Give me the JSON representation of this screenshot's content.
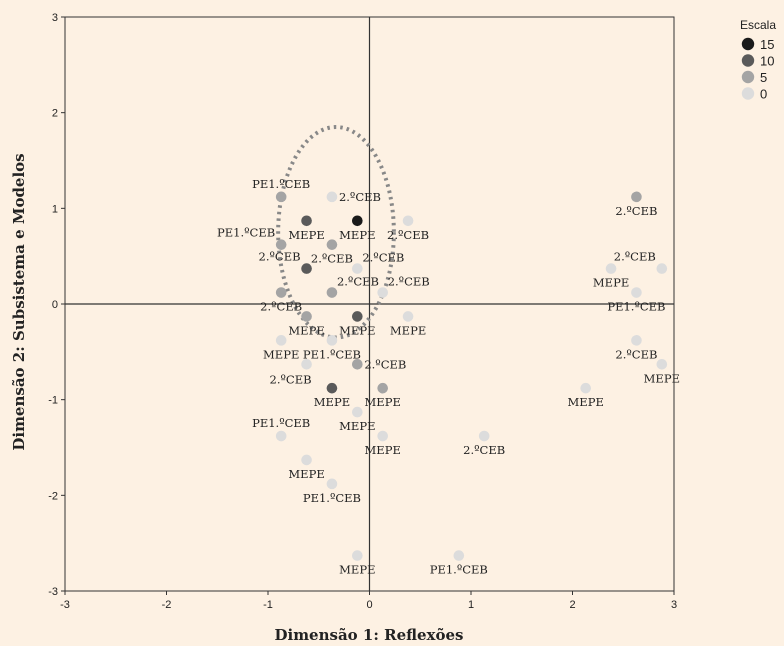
{
  "chart_data": {
    "type": "scatter",
    "xlabel": "Dimensão 1: Reflexões",
    "ylabel": "Dimensão 2: Subsistema e Modelos",
    "xlim": [
      -3,
      3
    ],
    "ylim": [
      -3,
      3
    ],
    "xticks": [
      "-3",
      "-2",
      "-1",
      "0",
      "1",
      "2",
      "3"
    ],
    "yticks": [
      "3",
      "2",
      "1",
      "0",
      "-1",
      "-2",
      "-3"
    ],
    "legend": {
      "title": "Escala",
      "placement": "top-right, outside plot",
      "entries": [
        {
          "label": "15",
          "color": "#1a1a1a"
        },
        {
          "label": "10",
          "color": "#5a5a5a"
        },
        {
          "label": "5",
          "color": "#a4a4a4"
        },
        {
          "label": "0",
          "color": "#dcdcdc"
        }
      ]
    },
    "colors": {
      "15": "#1a1a1a",
      "10": "#5a5a5a",
      "5": "#a4a4a4",
      "0": "#dcdcdc"
    },
    "points": [
      {
        "x": -0.87,
        "y": 1.12,
        "scale": "5",
        "label": "PE1.ºCEB",
        "pos": "above"
      },
      {
        "x": -0.37,
        "y": 1.12,
        "scale": "0",
        "label": "2.ºCEB",
        "pos": "right"
      },
      {
        "x": -0.62,
        "y": 0.87,
        "scale": "10",
        "label": "MEPE",
        "pos": "below"
      },
      {
        "x": -0.12,
        "y": 0.87,
        "scale": "15",
        "label": "MEPE",
        "pos": "below"
      },
      {
        "x": 0.38,
        "y": 0.87,
        "scale": "0",
        "label": "2.ºCEB",
        "pos": "below"
      },
      {
        "x": -0.87,
        "y": 0.62,
        "scale": "5",
        "label": "PE1.ºCEB",
        "pos": "upleft"
      },
      {
        "x": -0.37,
        "y": 0.62,
        "scale": "5",
        "label": "2.ºCEB",
        "pos": "below"
      },
      {
        "x": -0.62,
        "y": 0.37,
        "scale": "10",
        "label": "2.ºCEB",
        "pos": "upleft"
      },
      {
        "x": -0.12,
        "y": 0.37,
        "scale": "0",
        "label": "2.ºCEB",
        "pos": "upright"
      },
      {
        "x": -0.37,
        "y": 0.12,
        "scale": "5",
        "label": "2.ºCEB",
        "pos": "upright"
      },
      {
        "x": 0.13,
        "y": 0.12,
        "scale": "0",
        "label": "2.ºCEB",
        "pos": "upright"
      },
      {
        "x": -0.87,
        "y": 0.12,
        "scale": "5",
        "label": "2.ºCEB",
        "pos": "below"
      },
      {
        "x": -0.62,
        "y": -0.13,
        "scale": "5",
        "label": "MEPE",
        "pos": "below"
      },
      {
        "x": -0.12,
        "y": -0.13,
        "scale": "10",
        "label": "MEPE",
        "pos": "below"
      },
      {
        "x": 0.38,
        "y": -0.13,
        "scale": "0",
        "label": "MEPE",
        "pos": "below"
      },
      {
        "x": -0.87,
        "y": -0.38,
        "scale": "0",
        "label": "MEPE",
        "pos": "below"
      },
      {
        "x": -0.37,
        "y": -0.38,
        "scale": "0",
        "label": "PE1.ºCEB",
        "pos": "below"
      },
      {
        "x": -0.62,
        "y": -0.63,
        "scale": "0",
        "label": "2.ºCEB",
        "pos": "belowleft"
      },
      {
        "x": -0.12,
        "y": -0.63,
        "scale": "5",
        "label": "2.ºCEB",
        "pos": "right"
      },
      {
        "x": -0.37,
        "y": -0.88,
        "scale": "10",
        "label": "MEPE",
        "pos": "below"
      },
      {
        "x": 0.13,
        "y": -0.88,
        "scale": "5",
        "label": "MEPE",
        "pos": "below"
      },
      {
        "x": -0.12,
        "y": -1.13,
        "scale": "0",
        "label": "MEPE",
        "pos": "below"
      },
      {
        "x": 0.13,
        "y": -1.38,
        "scale": "0",
        "label": "MEPE",
        "pos": "below"
      },
      {
        "x": -0.87,
        "y": -1.38,
        "scale": "0",
        "label": "PE1.ºCEB",
        "pos": "above"
      },
      {
        "x": -0.62,
        "y": -1.63,
        "scale": "0",
        "label": "MEPE",
        "pos": "below"
      },
      {
        "x": -0.37,
        "y": -1.88,
        "scale": "0",
        "label": "PE1.ºCEB",
        "pos": "below"
      },
      {
        "x": -0.12,
        "y": -2.63,
        "scale": "0",
        "label": "MEPE",
        "pos": "below"
      },
      {
        "x": 0.88,
        "y": -2.63,
        "scale": "0",
        "label": "PE1.ºCEB",
        "pos": "below"
      },
      {
        "x": 1.13,
        "y": -1.38,
        "scale": "0",
        "label": "2.ºCEB",
        "pos": "below"
      },
      {
        "x": 2.13,
        "y": -0.88,
        "scale": "0",
        "label": "MEPE",
        "pos": "below"
      },
      {
        "x": 2.63,
        "y": 1.12,
        "scale": "5",
        "label": "2.ºCEB",
        "pos": "below"
      },
      {
        "x": 2.38,
        "y": 0.37,
        "scale": "0",
        "label": "MEPE",
        "pos": "below"
      },
      {
        "x": 2.88,
        "y": 0.37,
        "scale": "0",
        "label": "2.ºCEB",
        "pos": "upleft"
      },
      {
        "x": 2.63,
        "y": 0.12,
        "scale": "0",
        "label": "PE1.ºCEB",
        "pos": "below"
      },
      {
        "x": 2.63,
        "y": -0.38,
        "scale": "0",
        "label": "2.ºCEB",
        "pos": "below"
      },
      {
        "x": 2.88,
        "y": -0.63,
        "scale": "0",
        "label": "MEPE",
        "pos": "below"
      }
    ],
    "ellipse": {
      "cx": -0.33,
      "cy": 0.75,
      "rx": 0.57,
      "ry": 1.1,
      "style": "dotted"
    }
  }
}
